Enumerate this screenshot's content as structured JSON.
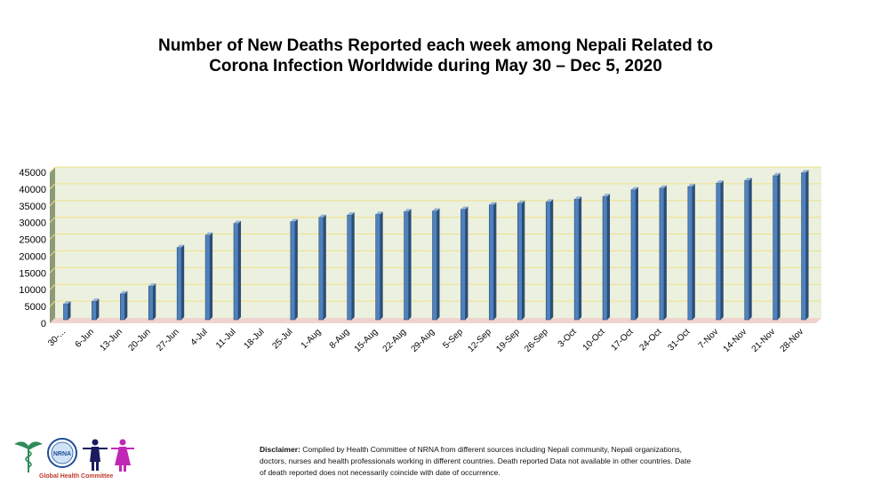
{
  "chart_data": {
    "type": "bar",
    "title": "Number of New Deaths Reported each week among Nepali Related to Corona Infection Worldwide during May 30 – Dec 5, 2020",
    "title_lines": [
      "Number of New Deaths Reported each week among Nepali Related to",
      "Corona Infection Worldwide during May 30 – Dec 5, 2020"
    ],
    "categories": [
      "30-...",
      "6-Jun",
      "13-Jun",
      "20-Jun",
      "27-Jun",
      "4-Jul",
      "11-Jul",
      "18-Jul",
      "25-Jul",
      "1-Aug",
      "8-Aug",
      "15-Aug",
      "22-Aug",
      "29-Aug",
      "5-Sep",
      "12-Sep",
      "19-Sep",
      "26-Sep",
      "3-Oct",
      "10-Oct",
      "17-Oct",
      "24-Oct",
      "31-Oct",
      "7-Nov",
      "14-Nov",
      "21-Nov",
      "28-Nov"
    ],
    "values": [
      5000,
      5800,
      8000,
      10300,
      21800,
      25500,
      29000,
      null,
      29500,
      30800,
      31500,
      31700,
      32500,
      32700,
      33200,
      34500,
      35000,
      35400,
      36200,
      37000,
      39000,
      39500,
      40000,
      41000,
      41800,
      43200,
      44100
    ],
    "yticks": [
      0,
      5000,
      10000,
      15000,
      20000,
      25000,
      30000,
      35000,
      40000,
      45000
    ],
    "ylim": [
      0,
      45000
    ],
    "xlabel": "",
    "ylabel": "",
    "grid": true,
    "bar_color": "#4f81bd",
    "plot_background": "#ebf1de",
    "gridline_color": "#f0e08a"
  },
  "logos": {
    "caption": "Global Health Committee",
    "nrna_text": "NRNA"
  },
  "disclaimer": {
    "label": "Disclaimer:",
    "text": " Compiled by Health Committee  of NRNA from different sources including Nepali community, Nepali organizations, doctors, nurses and health professionals working in different countries. Death reported Data not available in other countries. Date of death reported does not necessarily coincide with date of occurrence."
  }
}
